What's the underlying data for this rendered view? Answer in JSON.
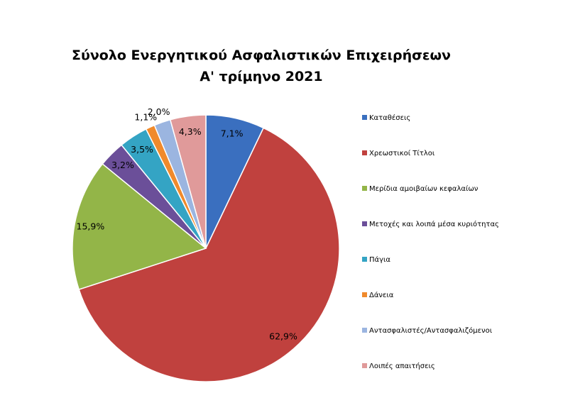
{
  "chart_data": {
    "type": "pie",
    "title": "Σύνολο Ενεργητικού Ασφαλιστικών Επιχειρήσεων",
    "subtitle": "Α' τρίμηνο 2021",
    "categories": [
      "Καταθέσεις",
      "Χρεωστικοί Τίτλοι",
      "Μερίδια αμοιβαίων κεφαλαίων",
      "Μετοχές και λοιπά μέσα κυριότητας",
      "Πάγια",
      "Δάνεια",
      "Αντασφαλιστές/Αντασφαλιζόμενοι",
      "Λοιπές απαιτήσεις"
    ],
    "values": [
      7.1,
      62.9,
      15.9,
      3.2,
      3.5,
      1.1,
      2.0,
      4.3
    ],
    "value_labels": [
      "7,1%",
      "62,9%",
      "15,9%",
      "3,2%",
      "3,5%",
      "1,1%",
      "2,0%",
      "4,3%"
    ],
    "colors": [
      "#3a6fbf",
      "#c0413e",
      "#93b548",
      "#6b4f99",
      "#34a4c4",
      "#f08a2c",
      "#9bb5e0",
      "#e09a9a"
    ],
    "legend": "right"
  }
}
